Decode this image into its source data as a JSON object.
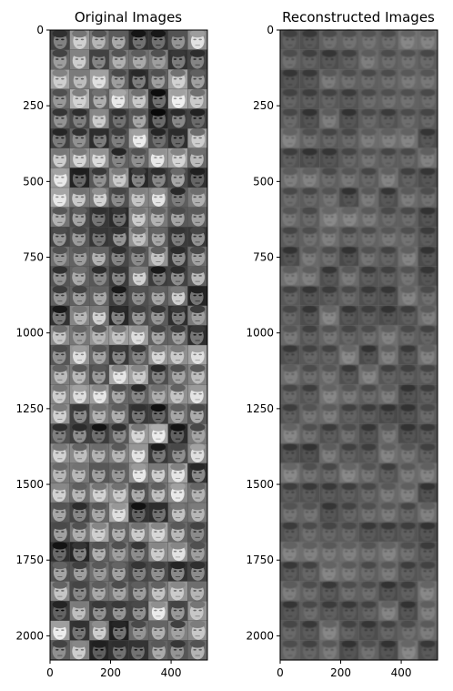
{
  "chart_data": [
    {
      "type": "image",
      "title": "Original Images",
      "content": "grid of grayscale face images",
      "xlim": [
        0,
        520
      ],
      "ylim": [
        2080,
        0
      ],
      "xticks": [
        0,
        200,
        400
      ],
      "yticks": [
        0,
        250,
        500,
        750,
        1000,
        1250,
        1500,
        1750,
        2000
      ],
      "grid": false
    },
    {
      "type": "image",
      "title": "Reconstructed Images",
      "content": "grid of blurred grayscale face reconstructions",
      "xlim": [
        0,
        520
      ],
      "ylim": [
        2080,
        0
      ],
      "xticks": [
        0,
        200,
        400
      ],
      "yticks": [
        0,
        250,
        500,
        750,
        1000,
        1250,
        1500,
        1750,
        2000
      ],
      "grid": false
    }
  ]
}
